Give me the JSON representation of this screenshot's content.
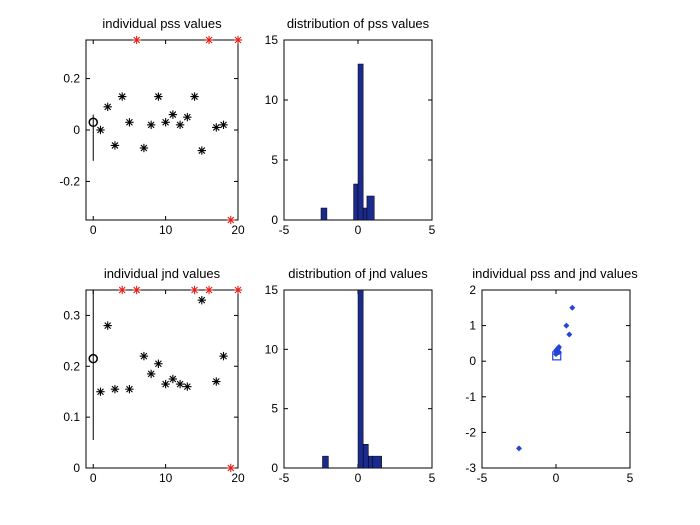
{
  "chart_data": [
    {
      "type": "scatter",
      "title": "individual pss values",
      "xlim": [
        -1,
        20
      ],
      "ylim": [
        -0.35,
        0.35
      ],
      "xticks": [
        0,
        10,
        20
      ],
      "yticks": [
        -0.2,
        0,
        0.2
      ],
      "xtick_labels": [
        "0",
        "10",
        "20"
      ],
      "ytick_labels": [
        "-0.2",
        "0",
        "0.2"
      ],
      "grid": false,
      "points": {
        "x": [
          1,
          2,
          3,
          4,
          5,
          7,
          8,
          9,
          10,
          11,
          12,
          13,
          14,
          15,
          17,
          18
        ],
        "y": [
          0.0,
          0.09,
          -0.06,
          0.13,
          0.03,
          -0.07,
          0.02,
          0.13,
          0.03,
          0.06,
          0.02,
          0.05,
          0.13,
          -0.08,
          0.01,
          0.02
        ]
      },
      "outliers_top": [
        6,
        16,
        20
      ],
      "outliers_bottom": [
        19
      ],
      "mean_marker": {
        "x": 0,
        "y": 0.03
      },
      "error_bar": {
        "x": 0,
        "low": -0.12,
        "high": 0.06
      },
      "marker_color": "#000000",
      "outlier_color": "#e0201a"
    },
    {
      "type": "bar",
      "title": "distribution of pss values",
      "xlim": [
        -5,
        5
      ],
      "ylim": [
        0,
        15
      ],
      "xticks": [
        -5,
        0,
        5
      ],
      "yticks": [
        0,
        5,
        10,
        15
      ],
      "xtick_labels": [
        "-5",
        "0",
        "5"
      ],
      "ytick_labels": [
        "0",
        "5",
        "10",
        "15"
      ],
      "bins": [
        {
          "x0": -2.5,
          "x1": -2.1,
          "count": 1
        },
        {
          "x0": -0.3,
          "x1": 0.0,
          "count": 3
        },
        {
          "x0": 0.0,
          "x1": 0.35,
          "count": 13
        },
        {
          "x0": 0.35,
          "x1": 0.6,
          "count": 1
        },
        {
          "x0": 0.6,
          "x1": 1.1,
          "count": 2
        }
      ],
      "bar_color": "#1a2b8c"
    },
    {
      "type": "scatter",
      "title": "individual jnd values",
      "xlim": [
        -1,
        20
      ],
      "ylim": [
        0,
        0.35
      ],
      "xticks": [
        0,
        10,
        20
      ],
      "yticks": [
        0,
        0.1,
        0.2,
        0.3
      ],
      "xtick_labels": [
        "0",
        "10",
        "20"
      ],
      "ytick_labels": [
        "0",
        "0.1",
        "0.2",
        "0.3"
      ],
      "grid": false,
      "points": {
        "x": [
          1,
          2,
          3,
          5,
          7,
          8,
          9,
          10,
          11,
          12,
          13,
          15,
          17,
          18
        ],
        "y": [
          0.15,
          0.28,
          0.155,
          0.155,
          0.22,
          0.185,
          0.205,
          0.165,
          0.175,
          0.165,
          0.16,
          0.33,
          0.17,
          0.22
        ]
      },
      "outliers_top": [
        4,
        6,
        14,
        16,
        20
      ],
      "outliers_bottom": [
        19
      ],
      "mean_marker": {
        "x": 0,
        "y": 0.215
      },
      "error_bar": {
        "x": 0,
        "low": 0.055,
        "high": 0.35
      },
      "marker_color": "#000000",
      "outlier_color": "#e0201a"
    },
    {
      "type": "bar",
      "title": "distribution of jnd values",
      "xlim": [
        -5,
        5
      ],
      "ylim": [
        0,
        15
      ],
      "xticks": [
        -5,
        0,
        5
      ],
      "yticks": [
        0,
        5,
        10,
        15
      ],
      "xtick_labels": [
        "-5",
        "0",
        "5"
      ],
      "ytick_labels": [
        "0",
        "5",
        "10",
        "15"
      ],
      "bins": [
        {
          "x0": -2.4,
          "x1": -2.0,
          "count": 1
        },
        {
          "x0": 0.0,
          "x1": 0.35,
          "count": 15
        },
        {
          "x0": 0.35,
          "x1": 0.7,
          "count": 2
        },
        {
          "x0": 0.7,
          "x1": 1.0,
          "count": 1
        },
        {
          "x0": 1.0,
          "x1": 1.6,
          "count": 1
        }
      ],
      "bar_color": "#1a2b8c"
    },
    {
      "type": "scatter",
      "title": "individual pss and jnd values",
      "xlim": [
        -5,
        5
      ],
      "ylim": [
        -3,
        2
      ],
      "xticks": [
        -5,
        0,
        5
      ],
      "yticks": [
        -3,
        -2,
        -1,
        0,
        1,
        2
      ],
      "xtick_labels": [
        "-5",
        "0",
        "5"
      ],
      "ytick_labels": [
        "-3",
        "-2",
        "-1",
        "0",
        "1",
        "2"
      ],
      "points": {
        "x": [
          -2.5,
          0.0,
          0.05,
          0.1,
          0.15,
          0.2,
          0.0,
          0.1,
          0.2,
          0.7,
          0.9,
          1.1
        ],
        "y": [
          -2.45,
          0.2,
          0.25,
          0.3,
          0.35,
          0.4,
          0.3,
          0.35,
          0.25,
          1.0,
          0.75,
          1.5
        ]
      },
      "mean_marker": {
        "x": 0.05,
        "y": 0.15
      },
      "marker_color": "#2346d6"
    }
  ]
}
